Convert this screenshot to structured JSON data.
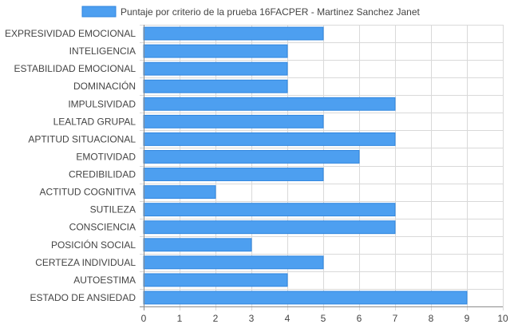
{
  "chart_data": {
    "type": "bar",
    "orientation": "horizontal",
    "categories": [
      "EXPRESIVIDAD EMOCIONAL",
      "INTELIGENCIA",
      "ESTABILIDAD EMOCIONAL",
      "DOMINACIÓN",
      "IMPULSIVIDAD",
      "LEALTAD GRUPAL",
      "APTITUD SITUACIONAL",
      "EMOTIVIDAD",
      "CREDIBILIDAD",
      "ACTITUD COGNITIVA",
      "SUTILEZA",
      "CONSCIENCIA",
      "POSICIÓN SOCIAL",
      "CERTEZA INDIVIDUAL",
      "AUTOESTIMA",
      "ESTADO DE ANSIEDAD"
    ],
    "series": [
      {
        "name": "Puntaje por criterio de la prueba 16FACPER - Martinez Sanchez Janet",
        "values": [
          5,
          4,
          4,
          4,
          7,
          5,
          7,
          6,
          5,
          2,
          7,
          7,
          3,
          5,
          4,
          9
        ]
      }
    ],
    "xlim": [
      0,
      10
    ],
    "x_ticks": [
      "0",
      "1",
      "2",
      "3",
      "4",
      "5",
      "6",
      "7",
      "8",
      "9",
      "10"
    ],
    "grid": true,
    "legend_position": "top",
    "colors": {
      "bar_fill": "#4d9ff0",
      "bar_stroke": "#2f86df",
      "grid": "#d9d9d9",
      "axis": "#8c8c8c",
      "text": "#444444"
    }
  }
}
